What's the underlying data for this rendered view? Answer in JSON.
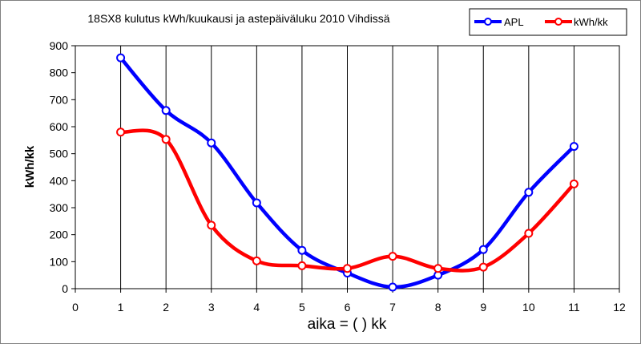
{
  "chart_data": {
    "type": "line",
    "title": "18SX8 kulutus kWh/kuukausi ja astepäiväluku 2010 Vihdissä",
    "xlabel": "aika = ( ) kk",
    "ylabel": "kWh/kk",
    "xlim": [
      0,
      12
    ],
    "ylim": [
      0,
      900
    ],
    "xticks": [
      "0",
      "1",
      "2",
      "3",
      "4",
      "5",
      "6",
      "7",
      "8",
      "9",
      "10",
      "11",
      "12"
    ],
    "yticks": [
      "0",
      "100",
      "200",
      "300",
      "400",
      "500",
      "600",
      "700",
      "800",
      "900"
    ],
    "grid": "vertical",
    "legend_position": "top-right",
    "series": [
      {
        "name": "APL",
        "color": "#0000ff",
        "x": [
          1,
          2,
          3,
          4,
          5,
          6,
          7,
          8,
          9,
          10,
          11
        ],
        "y": [
          855,
          660,
          540,
          318,
          142,
          58,
          6,
          50,
          145,
          357,
          527
        ]
      },
      {
        "name": "kWh/kk",
        "color": "#ff0000",
        "x": [
          1,
          2,
          3,
          4,
          5,
          6,
          7,
          8,
          9,
          10,
          11
        ],
        "y": [
          580,
          553,
          235,
          103,
          85,
          75,
          120,
          75,
          80,
          205,
          388
        ]
      }
    ]
  }
}
